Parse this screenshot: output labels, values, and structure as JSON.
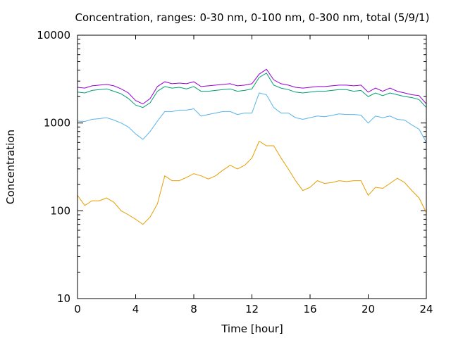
{
  "chart_data": {
    "type": "line",
    "title": "Concentration, ranges: 0-30 nm, 0-100 nm, 0-300 nm, total (5/9/1)",
    "xlabel": "Time [hour]",
    "ylabel": "Concentration",
    "xlim": [
      0,
      24
    ],
    "ylim": [
      10,
      10000
    ],
    "yscale": "log",
    "grid": false,
    "legend": "none",
    "x_ticks": [
      "0",
      "4",
      "8",
      "12",
      "16",
      "20",
      "24"
    ],
    "y_ticks": [
      "10",
      "100",
      "1000",
      "10000"
    ],
    "x": [
      0,
      0.5,
      1,
      1.5,
      2,
      2.5,
      3,
      3.5,
      4,
      4.5,
      5,
      5.5,
      6,
      6.5,
      7,
      7.5,
      8,
      8.5,
      9,
      9.5,
      10,
      10.5,
      11,
      11.5,
      12,
      12.5,
      13,
      13.5,
      14,
      14.5,
      15,
      15.5,
      16,
      16.5,
      17,
      17.5,
      18,
      18.5,
      19,
      19.5,
      20,
      20.5,
      21,
      21.5,
      22,
      22.5,
      23,
      23.5,
      24
    ],
    "series": [
      {
        "color": "#E69F00",
        "values": [
          150,
          115,
          130,
          130,
          140,
          125,
          100,
          90,
          80,
          70,
          85,
          120,
          250,
          220,
          220,
          240,
          265,
          250,
          230,
          250,
          290,
          330,
          300,
          330,
          400,
          620,
          550,
          550,
          400,
          300,
          220,
          170,
          185,
          220,
          205,
          210,
          220,
          215,
          220,
          220,
          150,
          185,
          180,
          205,
          235,
          210,
          170,
          140,
          95
        ]
      },
      {
        "color": "#56B4E9",
        "values": [
          1050,
          1040,
          1100,
          1120,
          1150,
          1080,
          1000,
          900,
          750,
          650,
          800,
          1050,
          1350,
          1350,
          1400,
          1400,
          1450,
          1200,
          1250,
          1300,
          1350,
          1350,
          1250,
          1300,
          1300,
          2200,
          2100,
          1500,
          1300,
          1300,
          1150,
          1100,
          1150,
          1200,
          1180,
          1220,
          1270,
          1250,
          1250,
          1230,
          1000,
          1200,
          1150,
          1200,
          1100,
          1080,
          950,
          850,
          600
        ]
      },
      {
        "color": "#009E73",
        "values": [
          2250,
          2200,
          2350,
          2400,
          2450,
          2300,
          2150,
          1900,
          1600,
          1500,
          1700,
          2300,
          2600,
          2500,
          2550,
          2450,
          2600,
          2300,
          2300,
          2350,
          2400,
          2450,
          2300,
          2350,
          2450,
          3300,
          3700,
          2700,
          2500,
          2400,
          2250,
          2200,
          2250,
          2300,
          2300,
          2350,
          2400,
          2400,
          2300,
          2350,
          2000,
          2200,
          2050,
          2200,
          2100,
          2000,
          1950,
          1850,
          1500
        ]
      },
      {
        "color": "#9400D3",
        "values": [
          2550,
          2500,
          2650,
          2700,
          2750,
          2650,
          2450,
          2200,
          1800,
          1650,
          1900,
          2600,
          2950,
          2800,
          2850,
          2800,
          2950,
          2600,
          2650,
          2700,
          2750,
          2800,
          2650,
          2700,
          2800,
          3600,
          4100,
          3100,
          2800,
          2700,
          2550,
          2500,
          2550,
          2600,
          2600,
          2650,
          2700,
          2700,
          2650,
          2700,
          2250,
          2500,
          2300,
          2500,
          2300,
          2200,
          2100,
          2050,
          1650
        ]
      }
    ]
  }
}
